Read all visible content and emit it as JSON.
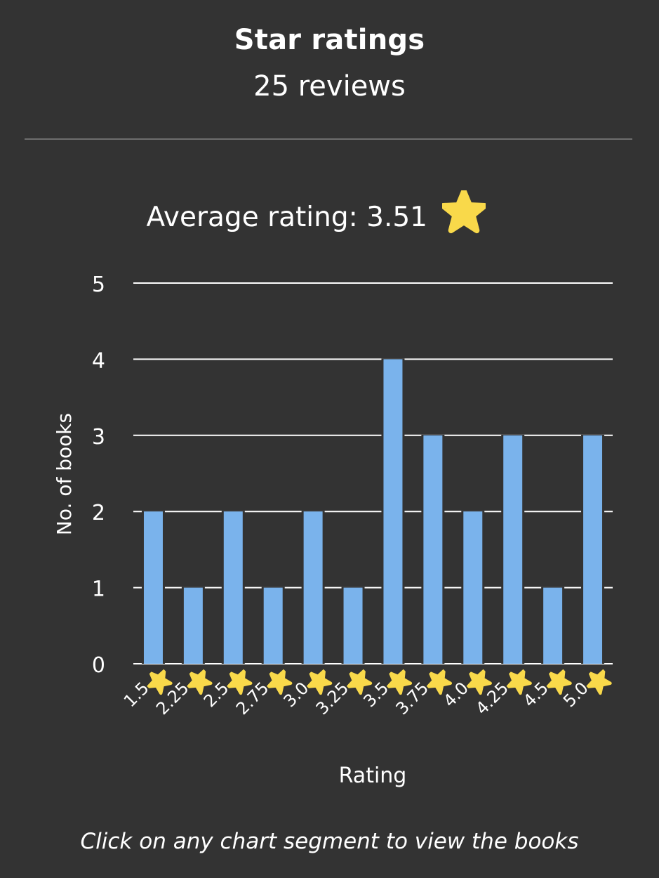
{
  "header": {
    "title": "Star ratings",
    "subtitle": "25 reviews"
  },
  "footer": {
    "hint": "Click on any chart segment to view the books"
  },
  "colors": {
    "background": "#333333",
    "bar": "#7ab3ec",
    "grid": "#ffffff",
    "star": "#f9d94a",
    "divider": "#6e6e6e"
  },
  "chart_data": {
    "type": "bar",
    "title": "Average rating: 3.51",
    "title_icon": "star-icon",
    "categories": [
      "1.5",
      "2.25",
      "2.5",
      "2.75",
      "3.0",
      "3.25",
      "3.5",
      "3.75",
      "4.0",
      "4.25",
      "4.5",
      "5.0"
    ],
    "category_icon": "star-icon",
    "values": [
      2,
      1,
      2,
      1,
      2,
      1,
      4,
      3,
      2,
      3,
      1,
      3
    ],
    "xlabel": "Rating",
    "ylabel": "No. of books",
    "ylim": [
      0,
      5
    ],
    "yticks": [
      0,
      1,
      2,
      3,
      4,
      5
    ],
    "grid": true,
    "legend": "none"
  }
}
